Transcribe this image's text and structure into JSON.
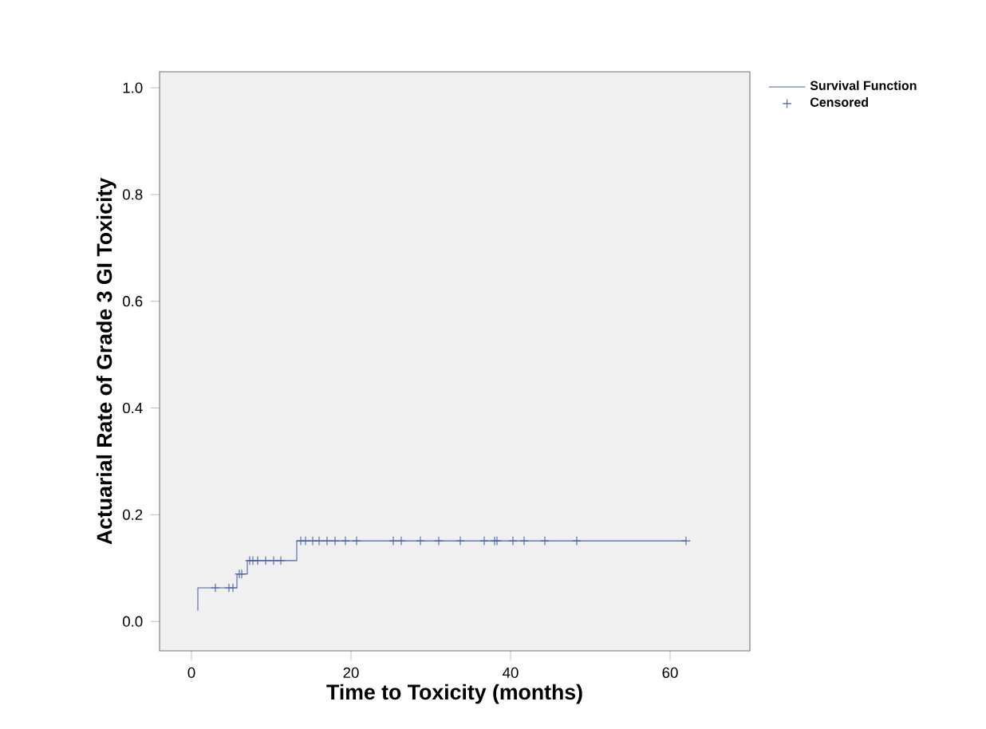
{
  "chart_data": {
    "type": "line",
    "xlabel": "Time to Toxicity (months)",
    "ylabel": "Actuarial Rate of Grade 3 GI Toxicity",
    "xlim": [
      -4,
      70
    ],
    "ylim": [
      -0.055,
      1.03
    ],
    "xticks": [
      0,
      20,
      40,
      60
    ],
    "yticks": [
      {
        "value": 0,
        "label": "0.0"
      },
      {
        "value": 0.2,
        "label": "0.2"
      },
      {
        "value": 0.4,
        "label": "0.4"
      },
      {
        "value": 0.6,
        "label": "0.6"
      },
      {
        "value": 0.8,
        "label": "0.8"
      },
      {
        "value": 1,
        "label": "1.0"
      }
    ],
    "grid": false,
    "legend": "top right",
    "series": [
      {
        "name": "Survival Function",
        "type": "step",
        "marker": "none",
        "color": "#4a63a8",
        "x": [
          0.8,
          0.8,
          5.7,
          7.0,
          13.2,
          62
        ],
        "values": [
          0.02,
          0.063,
          0.089,
          0.114,
          0.151,
          0.151
        ]
      },
      {
        "name": "Censored",
        "type": "scatter",
        "marker": "cross",
        "color": "#4a63a8",
        "x": [
          3.0,
          4.7,
          5.2,
          6.0,
          6.3,
          7.3,
          7.7,
          8.3,
          9.3,
          10.3,
          11.2,
          13.7,
          14.3,
          15.2,
          16,
          17,
          18,
          19.3,
          20.7,
          25.3,
          26.3,
          28.7,
          31,
          33.7,
          36.7,
          38,
          38.3,
          40.3,
          41.7,
          44.3,
          48.3,
          62
        ],
        "values": [
          0.063,
          0.063,
          0.063,
          0.089,
          0.089,
          0.114,
          0.114,
          0.114,
          0.114,
          0.114,
          0.114,
          0.151,
          0.151,
          0.151,
          0.151,
          0.151,
          0.151,
          0.151,
          0.151,
          0.151,
          0.151,
          0.151,
          0.151,
          0.151,
          0.151,
          0.151,
          0.151,
          0.151,
          0.151,
          0.151,
          0.151,
          0.151
        ]
      }
    ]
  }
}
